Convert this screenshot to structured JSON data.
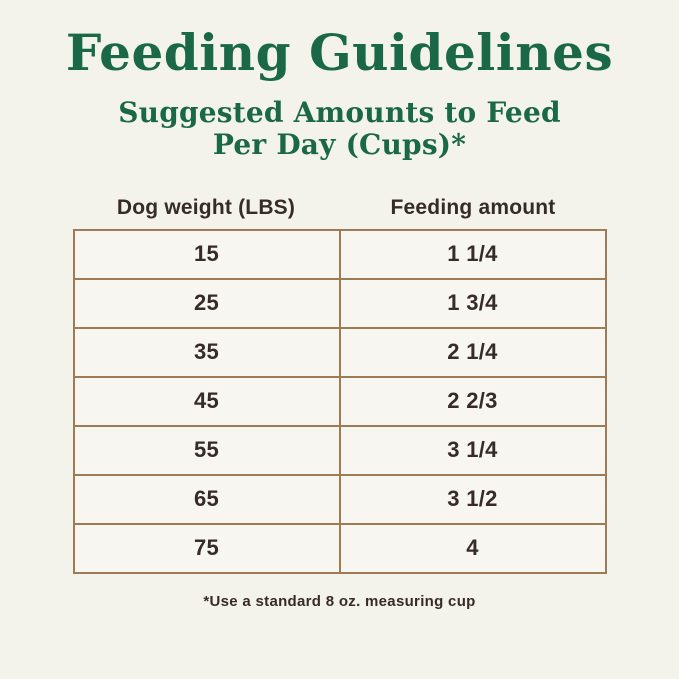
{
  "page": {
    "title": "Feeding Guidelines",
    "subtitle_line1": "Suggested Amounts to Feed",
    "subtitle_line2": "Per Day (Cups)*",
    "footnote": "*Use a standard 8 oz. measuring cup"
  },
  "table": {
    "columns": [
      "Dog weight (LBS)",
      "Feeding amount"
    ],
    "rows": [
      {
        "weight": "15",
        "amount": "1 1/4"
      },
      {
        "weight": "25",
        "amount": "1 3/4"
      },
      {
        "weight": "35",
        "amount": "2 1/4"
      },
      {
        "weight": "45",
        "amount": "2 2/3"
      },
      {
        "weight": "55",
        "amount": "3 1/4"
      },
      {
        "weight": "65",
        "amount": "3 1/2"
      },
      {
        "weight": "75",
        "amount": "4"
      }
    ]
  },
  "colors": {
    "background": "#f4f3eb",
    "heading_green": "#1a6848",
    "text_dark": "#362b27",
    "table_border": "#9d7c55",
    "cell_background": "#f7f6f0"
  },
  "chart_data": {
    "type": "table",
    "title": "Feeding Guidelines",
    "subtitle": "Suggested Amounts to Feed Per Day (Cups)*",
    "columns": [
      "Dog weight (LBS)",
      "Feeding amount"
    ],
    "rows": [
      [
        "15",
        "1 1/4"
      ],
      [
        "25",
        "1 3/4"
      ],
      [
        "35",
        "2 1/4"
      ],
      [
        "45",
        "2 2/3"
      ],
      [
        "55",
        "3 1/4"
      ],
      [
        "65",
        "3 1/2"
      ],
      [
        "75",
        "4"
      ]
    ],
    "footnote": "*Use a standard 8 oz. measuring cup"
  }
}
